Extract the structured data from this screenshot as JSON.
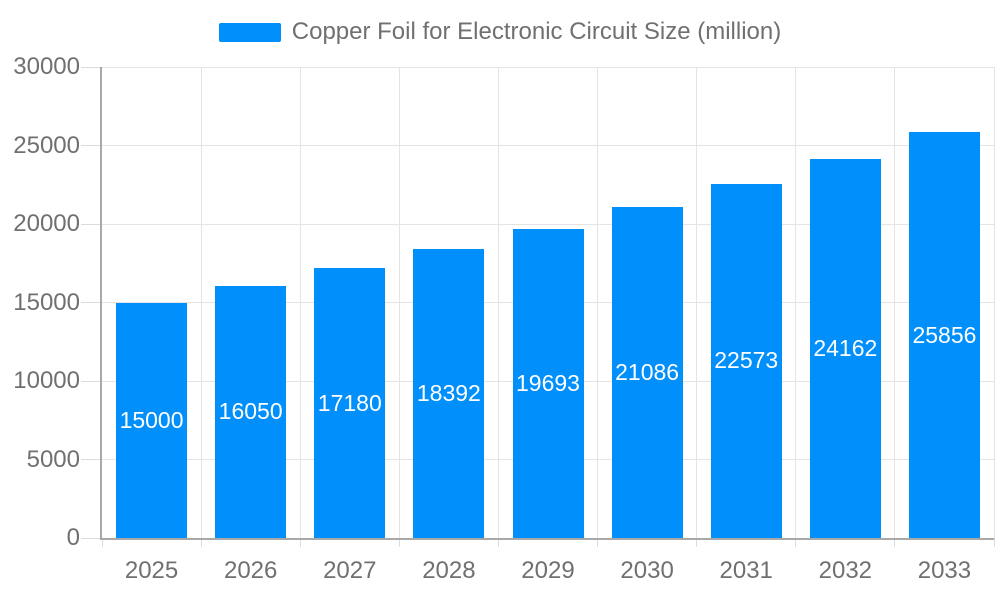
{
  "chart_data": {
    "type": "bar",
    "title": "Copper Foil for Electronic Circuit Size (million)",
    "categories": [
      "2025",
      "2026",
      "2027",
      "2028",
      "2029",
      "2030",
      "2031",
      "2032",
      "2033"
    ],
    "series": [
      {
        "name": "Copper Foil for Electronic Circuit Size (million)",
        "values": [
          15000,
          16050,
          17180,
          18392,
          19693,
          21086,
          22573,
          24162,
          25856
        ]
      }
    ],
    "data_labels": [
      "15000",
      "16050",
      "17180",
      "18392",
      "19693",
      "21086",
      "22573",
      "24162",
      "25856"
    ],
    "xlabel": "",
    "ylabel": "",
    "ylim": [
      0,
      30000
    ],
    "yticks": [
      0,
      5000,
      10000,
      15000,
      20000,
      25000,
      30000
    ],
    "ytick_labels": [
      "0",
      "5000",
      "10000",
      "15000",
      "20000",
      "25000",
      "30000"
    ],
    "grid": true,
    "legend_position": "top",
    "data_label_position": "center",
    "colors": {
      "bar": "#008FFB",
      "grid": "#e4e4e4",
      "tick": "#dcdcdc",
      "axis": "#a8a8a8",
      "axis_label": "#707070",
      "legend_label": "#707070",
      "data_label": "#ffffff",
      "background": "#ffffff"
    }
  }
}
